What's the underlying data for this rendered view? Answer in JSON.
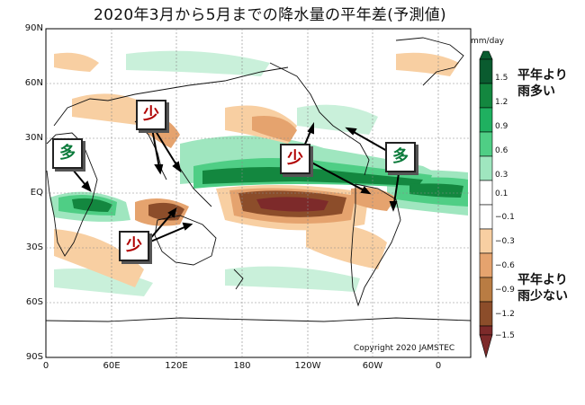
{
  "title": "2020年3月から5月までの降水量の平年差(予測値)",
  "latitude_labels": [
    "90N",
    "60N",
    "30N",
    "EQ",
    "30S",
    "60S",
    "90S"
  ],
  "longitude_labels": [
    "0",
    "60E",
    "120E",
    "180",
    "120W",
    "60W",
    "0"
  ],
  "colorbar": {
    "units": "mm/day",
    "ticks": [
      "1.5",
      "1.2",
      "0.9",
      "0.6",
      "0.3",
      "0.1",
      "−0.1",
      "−0.3",
      "−0.6",
      "−0.9",
      "−1.2",
      "−1.5"
    ],
    "colors": [
      "#0a5b2f",
      "#13873f",
      "#1fb060",
      "#4fce85",
      "#9fe6bf",
      "#ffffff",
      "#ffffff",
      "#f8cfa2",
      "#e5a36e",
      "#b97c43",
      "#8c4d2a",
      "#7d2a2a"
    ]
  },
  "legend_notes": {
    "wetter": [
      "平年より",
      "雨多い"
    ],
    "drier": [
      "平年より",
      "雨少ない"
    ]
  },
  "callouts": {
    "more_label": "多",
    "less_label": "少"
  },
  "copyright": "Copyright  2020  JAMSTEC"
}
